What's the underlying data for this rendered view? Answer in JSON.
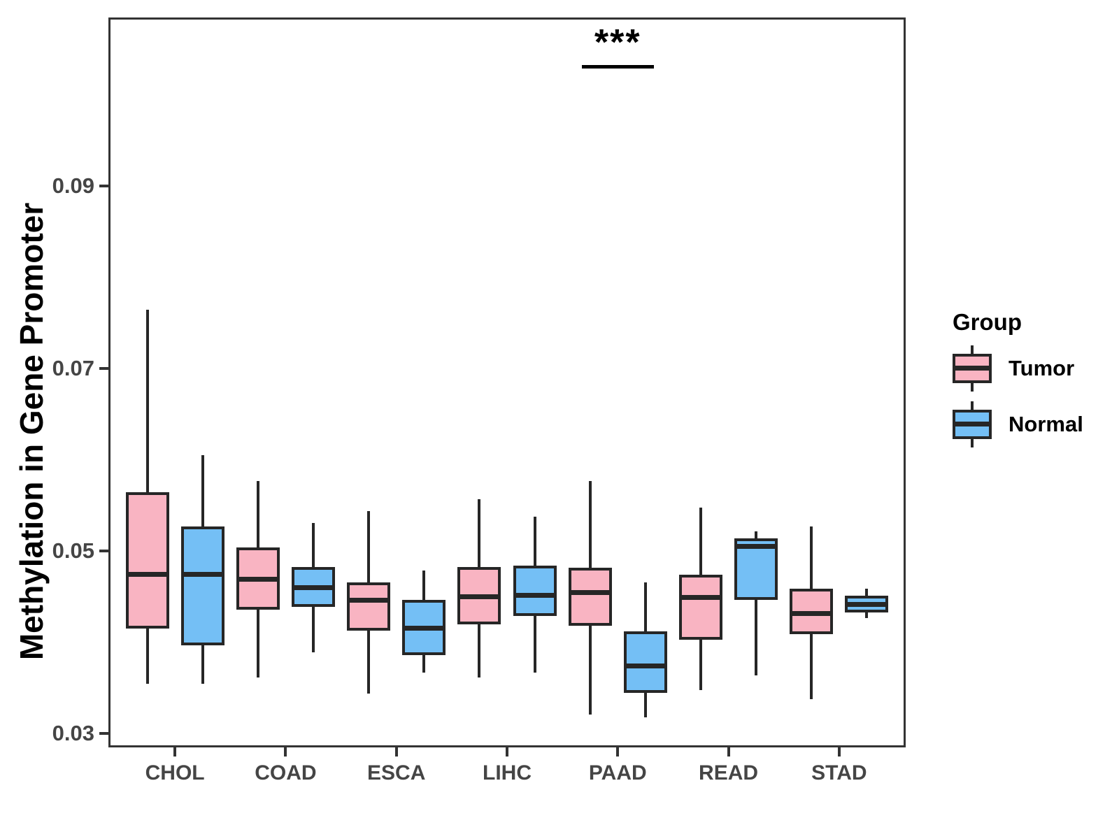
{
  "chart_data": {
    "type": "boxplot",
    "title": "",
    "ylabel": "Methylation in Gene Promoter",
    "xlabel": "",
    "categories": [
      "CHOL",
      "COAD",
      "ESCA",
      "LIHC",
      "PAAD",
      "READ",
      "STAD"
    ],
    "y_ticks": [
      0.03,
      0.05,
      0.07,
      0.09
    ],
    "y_tick_labels": [
      "0.03",
      "0.05",
      "0.07",
      "0.09"
    ],
    "ylim": [
      0.0285,
      0.1085
    ],
    "grid": false,
    "legend_position": "right",
    "legend_title": "Group",
    "colors": {
      "tumor_fill": "#F9B4C2",
      "normal_fill": "#74BFF5",
      "box_line": "#262626",
      "axis_text": "#454545",
      "axis_title_text": "#000000",
      "panel_border": "#333333"
    },
    "series": [
      {
        "name": "Tumor",
        "color": "#F9B4C2",
        "boxes": [
          {
            "category": "CHOL",
            "whisker_low": 0.0355,
            "q1": 0.0415,
            "median": 0.0475,
            "q3": 0.0565,
            "whisker_high": 0.0765
          },
          {
            "category": "COAD",
            "whisker_low": 0.0362,
            "q1": 0.0436,
            "median": 0.0469,
            "q3": 0.0504,
            "whisker_high": 0.0577
          },
          {
            "category": "ESCA",
            "whisker_low": 0.0344,
            "q1": 0.0413,
            "median": 0.0446,
            "q3": 0.0466,
            "whisker_high": 0.0544
          },
          {
            "category": "LIHC",
            "whisker_low": 0.0362,
            "q1": 0.042,
            "median": 0.045,
            "q3": 0.0483,
            "whisker_high": 0.0557
          },
          {
            "category": "PAAD",
            "whisker_low": 0.0321,
            "q1": 0.0418,
            "median": 0.0455,
            "q3": 0.0482,
            "whisker_high": 0.0577
          },
          {
            "category": "READ",
            "whisker_low": 0.0348,
            "q1": 0.0403,
            "median": 0.0449,
            "q3": 0.0474,
            "whisker_high": 0.0548
          },
          {
            "category": "STAD",
            "whisker_low": 0.0338,
            "q1": 0.0409,
            "median": 0.0432,
            "q3": 0.0459,
            "whisker_high": 0.0527
          }
        ]
      },
      {
        "name": "Normal",
        "color": "#74BFF5",
        "boxes": [
          {
            "category": "CHOL",
            "whisker_low": 0.0355,
            "q1": 0.0397,
            "median": 0.0475,
            "q3": 0.0527,
            "whisker_high": 0.0605
          },
          {
            "category": "COAD",
            "whisker_low": 0.0389,
            "q1": 0.0439,
            "median": 0.046,
            "q3": 0.0483,
            "whisker_high": 0.0531
          },
          {
            "category": "ESCA",
            "whisker_low": 0.0367,
            "q1": 0.0386,
            "median": 0.0416,
            "q3": 0.0447,
            "whisker_high": 0.0479
          },
          {
            "category": "LIHC",
            "whisker_low": 0.0367,
            "q1": 0.0429,
            "median": 0.0452,
            "q3": 0.0484,
            "whisker_high": 0.0538
          },
          {
            "category": "PAAD",
            "whisker_low": 0.0318,
            "q1": 0.0345,
            "median": 0.0374,
            "q3": 0.0412,
            "whisker_high": 0.0466
          },
          {
            "category": "READ",
            "whisker_low": 0.0364,
            "q1": 0.0447,
            "median": 0.0505,
            "q3": 0.0514,
            "whisker_high": 0.0522
          },
          {
            "category": "STAD",
            "whisker_low": 0.0427,
            "q1": 0.0433,
            "median": 0.0442,
            "q3": 0.0451,
            "whisker_high": 0.0459
          }
        ]
      }
    ],
    "annotations": [
      {
        "label": "***",
        "category": "PAAD",
        "compares": [
          "Tumor",
          "Normal"
        ],
        "line_y": 0.1033
      }
    ]
  }
}
